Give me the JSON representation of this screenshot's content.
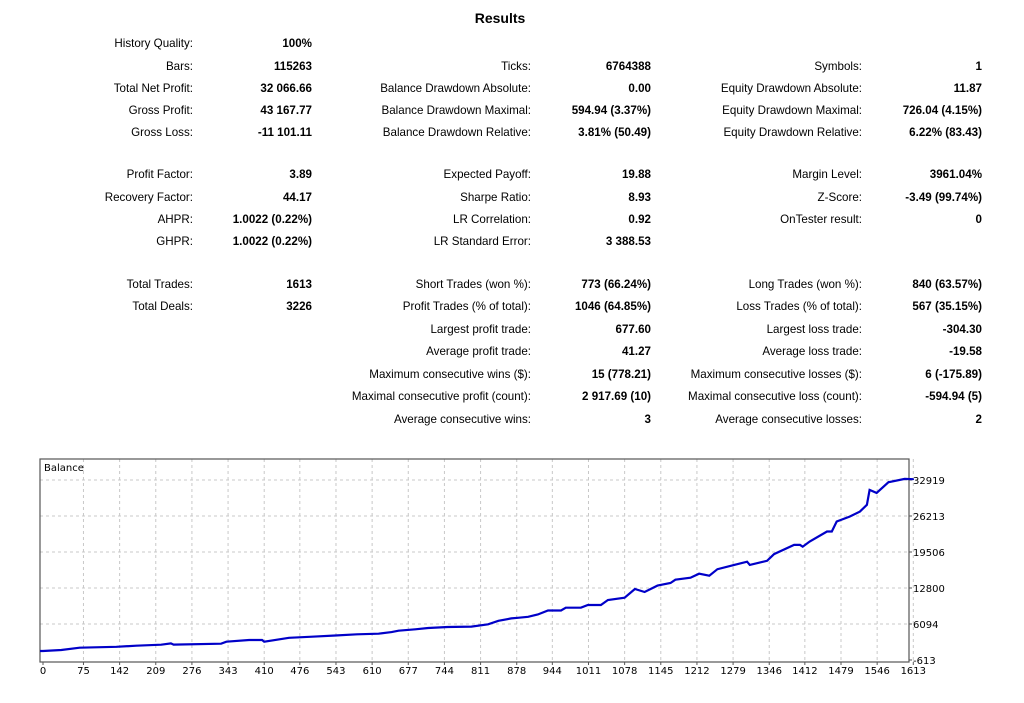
{
  "title": "Results",
  "rows": [
    [
      [
        "History Quality:",
        "100%"
      ],
      null,
      null
    ],
    [
      [
        "Bars:",
        "115263"
      ],
      [
        "Ticks:",
        "6764388"
      ],
      [
        "Symbols:",
        "1"
      ]
    ],
    [
      [
        "Total Net Profit:",
        "32 066.66"
      ],
      [
        "Balance Drawdown Absolute:",
        "0.00"
      ],
      [
        "Equity Drawdown Absolute:",
        "11.87"
      ]
    ],
    [
      [
        "Gross Profit:",
        "43 167.77"
      ],
      [
        "Balance Drawdown Maximal:",
        "594.94 (3.37%)"
      ],
      [
        "Equity Drawdown Maximal:",
        "726.04 (4.15%)"
      ]
    ],
    [
      [
        "Gross Loss:",
        "-11 101.11"
      ],
      [
        "Balance Drawdown Relative:",
        "3.81% (50.49)"
      ],
      [
        "Equity Drawdown Relative:",
        "6.22% (83.43)"
      ]
    ],
    [
      [
        "Profit Factor:",
        "3.89"
      ],
      [
        "Expected Payoff:",
        "19.88"
      ],
      [
        "Margin Level:",
        "3961.04%"
      ]
    ],
    [
      [
        "Recovery Factor:",
        "44.17"
      ],
      [
        "Sharpe Ratio:",
        "8.93"
      ],
      [
        "Z-Score:",
        "-3.49 (99.74%)"
      ]
    ],
    [
      [
        "AHPR:",
        "1.0022 (0.22%)"
      ],
      [
        "LR Correlation:",
        "0.92"
      ],
      [
        "OnTester result:",
        "0"
      ]
    ],
    [
      [
        "GHPR:",
        "1.0022 (0.22%)"
      ],
      [
        "LR Standard Error:",
        "3 388.53"
      ],
      null
    ],
    [
      [
        "Total Trades:",
        "1613"
      ],
      [
        "Short Trades (won %):",
        "773 (66.24%)"
      ],
      [
        "Long Trades (won %):",
        "840 (63.57%)"
      ]
    ],
    [
      [
        "Total Deals:",
        "3226"
      ],
      [
        "Profit Trades (% of total):",
        "1046 (64.85%)"
      ],
      [
        "Loss Trades (% of total):",
        "567 (35.15%)"
      ]
    ],
    [
      null,
      [
        "Largest profit trade:",
        "677.60"
      ],
      [
        "Largest loss trade:",
        "-304.30"
      ]
    ],
    [
      null,
      [
        "Average profit trade:",
        "41.27"
      ],
      [
        "Average loss trade:",
        "-19.58"
      ]
    ],
    [
      null,
      [
        "Maximum consecutive wins ($):",
        "15 (778.21)"
      ],
      [
        "Maximum consecutive losses ($):",
        "6 (-175.89)"
      ]
    ],
    [
      null,
      [
        "Maximal consecutive profit (count):",
        "2 917.69 (10)"
      ],
      [
        "Maximal consecutive loss (count):",
        "-594.94 (5)"
      ]
    ],
    [
      null,
      [
        "Average consecutive wins:",
        "3"
      ],
      [
        "Average consecutive losses:",
        "2"
      ]
    ]
  ],
  "chart_data": {
    "type": "line",
    "title": "Balance",
    "x_ticks": [
      "0",
      "75",
      "142",
      "209",
      "276",
      "343",
      "410",
      "476",
      "543",
      "610",
      "677",
      "744",
      "811",
      "878",
      "944",
      "1011",
      "1078",
      "1145",
      "1212",
      "1279",
      "1346",
      "1412",
      "1479",
      "1546",
      "1613"
    ],
    "y_ticks": [
      "32919",
      "26213",
      "19506",
      "12800",
      "6094",
      "-613"
    ],
    "ylim": [
      -613,
      32919
    ],
    "xlim": [
      0,
      1620
    ],
    "grid": true,
    "line_color": "#0000c8",
    "series": [
      {
        "x": [
          0,
          34,
          68,
          136,
          173,
          219,
          237,
          242,
          330,
          340,
          382,
          406,
          410,
          456,
          499,
          542,
          582,
          622,
          646,
          659,
          690,
          714,
          750,
          794,
          825,
          844,
          868,
          880,
          899,
          917,
          936,
          960,
          969,
          997,
          1010,
          1034,
          1047,
          1078,
          1097,
          1115,
          1139,
          1163,
          1172,
          1200,
          1216,
          1235,
          1250,
          1281,
          1305,
          1310,
          1342,
          1355,
          1392,
          1403,
          1408,
          1421,
          1453,
          1462,
          1471,
          1495,
          1514,
          1527,
          1532,
          1545,
          1567,
          1597,
          1613
        ],
        "y": [
          1060,
          1250,
          1680,
          1850,
          2050,
          2230,
          2480,
          2250,
          2430,
          2800,
          3110,
          3110,
          2800,
          3530,
          3720,
          3960,
          4170,
          4280,
          4580,
          4850,
          5100,
          5350,
          5530,
          5600,
          6030,
          6690,
          7130,
          7240,
          7440,
          7860,
          8600,
          8600,
          9130,
          9130,
          9630,
          9630,
          10560,
          10990,
          12610,
          12050,
          13240,
          13730,
          14340,
          14720,
          15470,
          15100,
          16300,
          17100,
          17700,
          17100,
          17860,
          19110,
          20830,
          20830,
          20500,
          21460,
          23320,
          23320,
          25180,
          26110,
          27040,
          28290,
          31080,
          30520,
          32510,
          33120,
          33066
        ]
      }
    ]
  }
}
